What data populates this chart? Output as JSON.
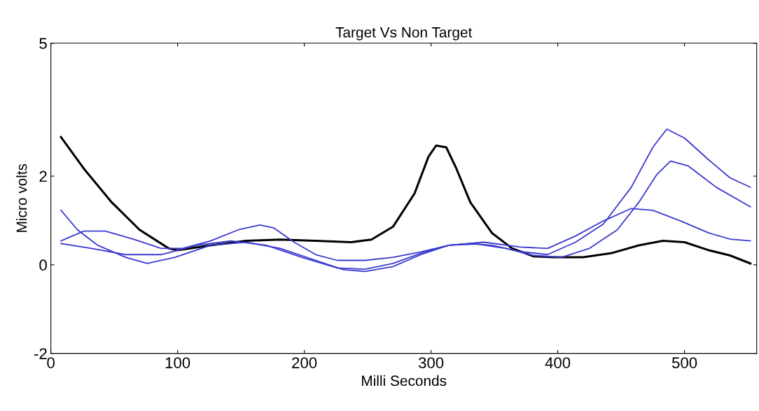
{
  "chart_data": {
    "type": "line",
    "title": "Target Vs Non Target",
    "xlabel": "Milli Seconds",
    "ylabel": "Micro volts",
    "xlim": [
      0,
      557
    ],
    "xticks": [
      0,
      100,
      200,
      300,
      400,
      500
    ],
    "ylim": [
      -2,
      5
    ],
    "yticks": [
      -2,
      0,
      2,
      5
    ],
    "grid": false,
    "legend": false,
    "series": [
      {
        "color": "#000000",
        "x": [
          8,
          26,
          48,
          70,
          93,
          100,
          126,
          154,
          181,
          209,
          237,
          253,
          270,
          287,
          298,
          304,
          312,
          320,
          331,
          348,
          364,
          381,
          397,
          420,
          442,
          464,
          483,
          500,
          519,
          536,
          552
        ],
        "values": [
          2.88,
          2.17,
          1.41,
          0.79,
          0.37,
          0.33,
          0.44,
          0.54,
          0.57,
          0.54,
          0.51,
          0.57,
          0.86,
          1.61,
          2.44,
          2.69,
          2.65,
          2.17,
          1.41,
          0.72,
          0.37,
          0.19,
          0.17,
          0.17,
          0.26,
          0.44,
          0.54,
          0.51,
          0.33,
          0.21,
          0.03
        ]
      },
      {
        "color": "#3a3ad0",
        "x": [
          8,
          21,
          37,
          59,
          76,
          98,
          126,
          154,
          181,
          209,
          231,
          248,
          270,
          292,
          314,
          331,
          348,
          370,
          392,
          414,
          436,
          458,
          475,
          486,
          500,
          519,
          536,
          552
        ],
        "values": [
          1.23,
          0.79,
          0.44,
          0.17,
          0.03,
          0.17,
          0.44,
          0.51,
          0.37,
          0.1,
          -0.11,
          -0.15,
          -0.04,
          0.23,
          0.44,
          0.48,
          0.44,
          0.3,
          0.23,
          0.51,
          0.92,
          1.75,
          2.65,
          3.06,
          2.86,
          2.37,
          1.96,
          1.75
        ]
      },
      {
        "color": "#3a3ad0",
        "x": [
          8,
          32,
          59,
          87,
          115,
          142,
          170,
          198,
          226,
          248,
          270,
          292,
          314,
          336,
          359,
          381,
          403,
          425,
          447,
          464,
          478,
          489,
          503,
          525,
          552
        ],
        "values": [
          0.48,
          0.37,
          0.23,
          0.23,
          0.44,
          0.54,
          0.44,
          0.17,
          -0.07,
          -0.1,
          0.03,
          0.26,
          0.44,
          0.47,
          0.37,
          0.21,
          0.17,
          0.37,
          0.79,
          1.41,
          2.03,
          2.34,
          2.23,
          1.75,
          1.31
        ]
      },
      {
        "color": "#3a3ad0",
        "x": [
          8,
          26,
          43,
          65,
          87,
          104,
          126,
          148,
          165,
          176,
          192,
          209,
          226,
          248,
          270,
          292,
          314,
          342,
          370,
          392,
          414,
          436,
          458,
          475,
          497,
          519,
          536,
          552
        ],
        "values": [
          0.54,
          0.76,
          0.76,
          0.58,
          0.37,
          0.37,
          0.54,
          0.79,
          0.9,
          0.83,
          0.51,
          0.23,
          0.1,
          0.1,
          0.17,
          0.29,
          0.44,
          0.51,
          0.4,
          0.37,
          0.65,
          0.99,
          1.27,
          1.23,
          0.99,
          0.72,
          0.58,
          0.54
        ]
      }
    ]
  }
}
